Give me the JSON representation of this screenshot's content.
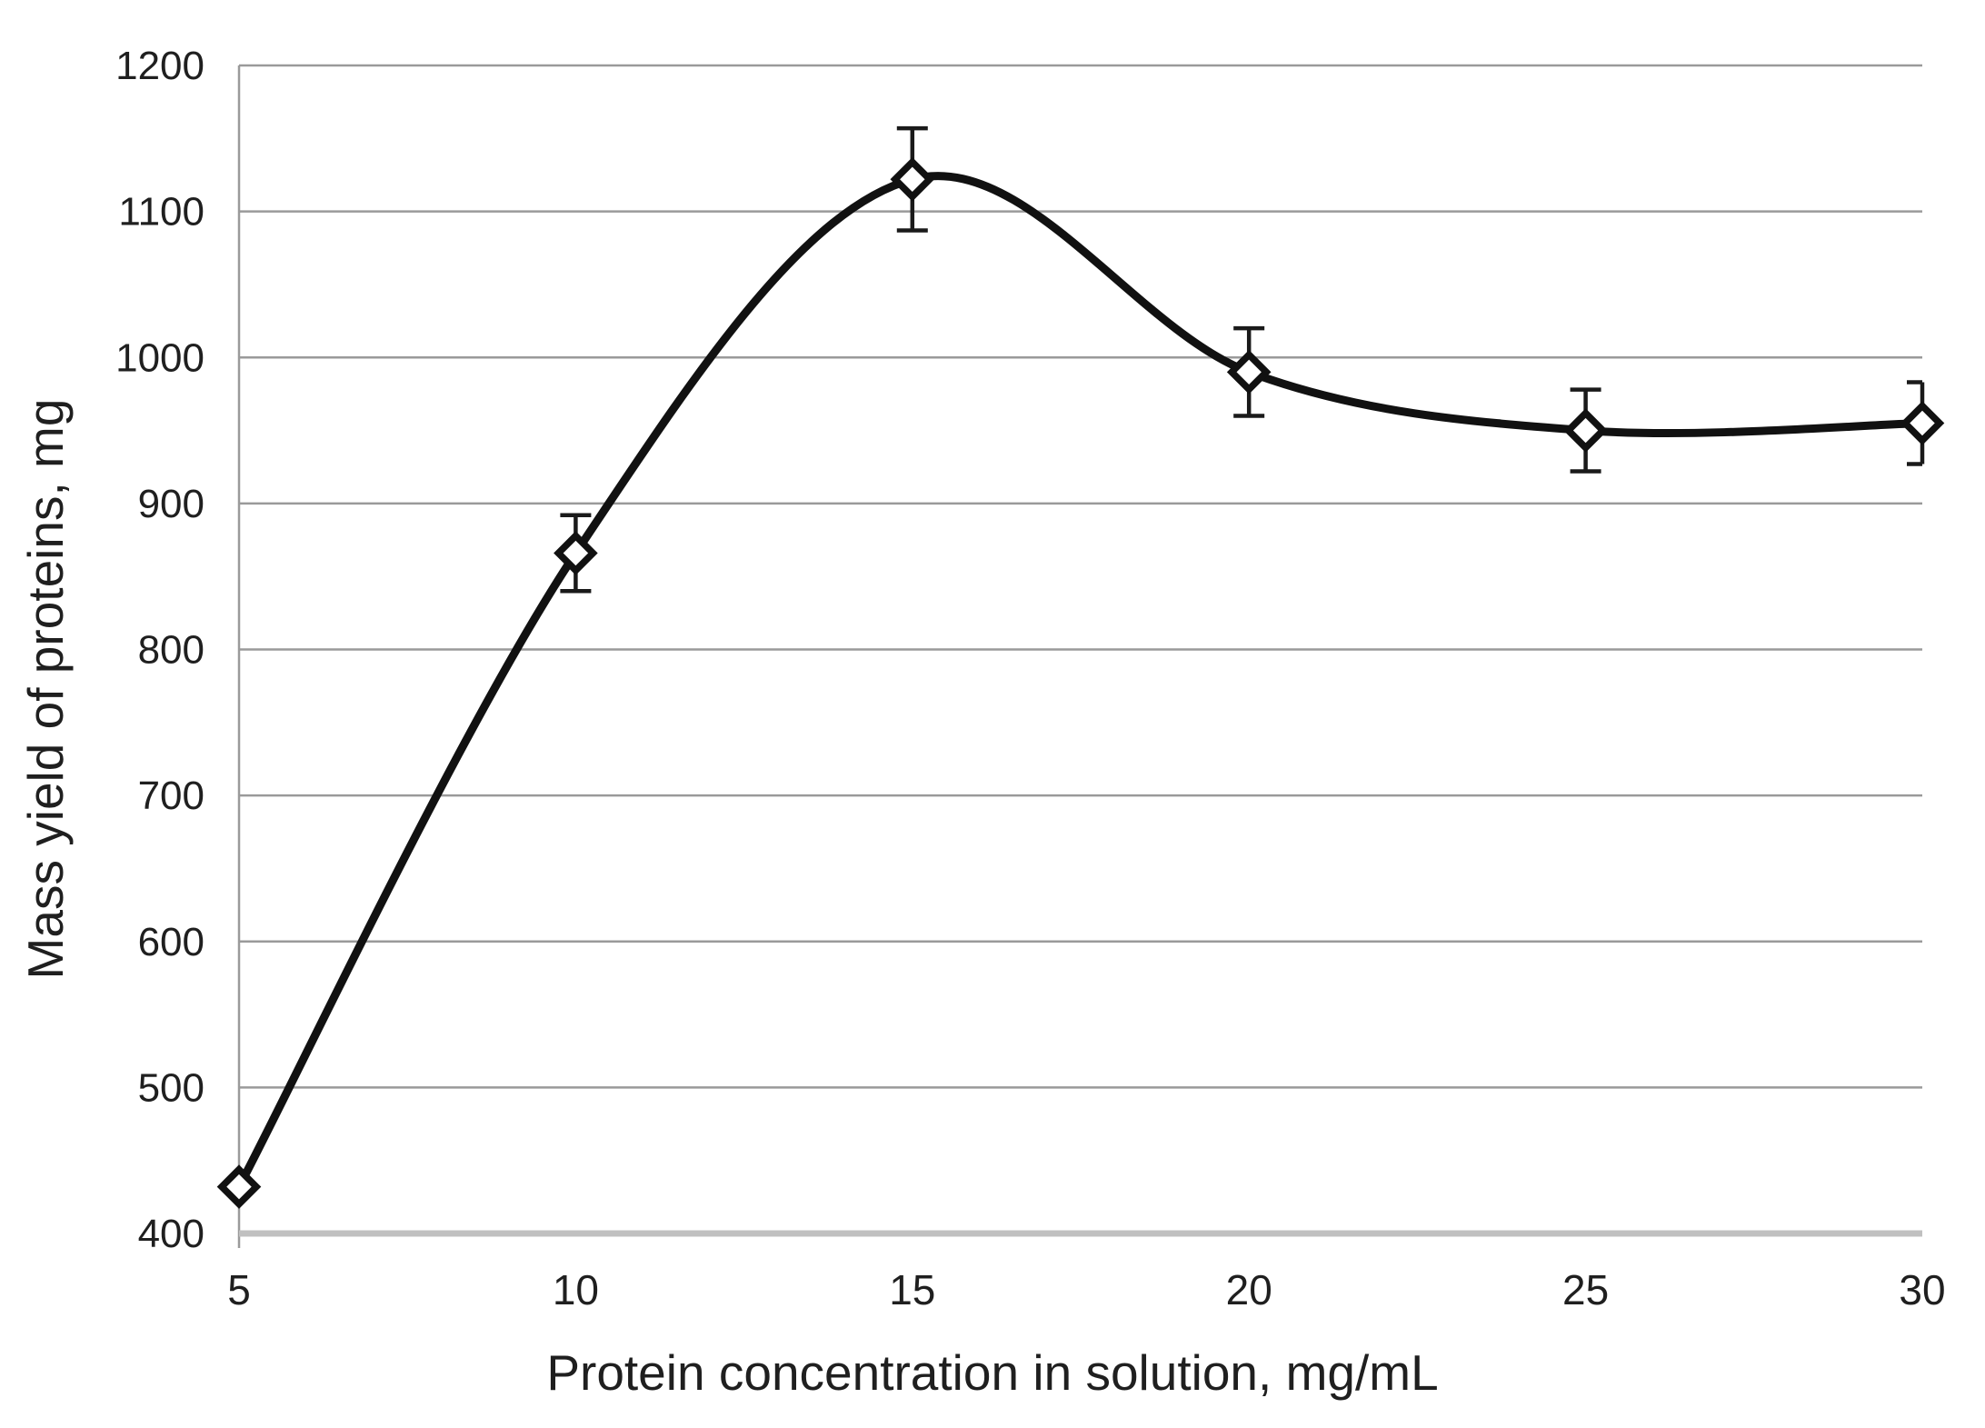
{
  "chart_data": {
    "type": "line",
    "title": "",
    "xlabel": "Protein concentration in solution, mg/mL",
    "ylabel": "Mass yield of proteins, mg",
    "x": [
      5,
      10,
      15,
      20,
      25,
      30
    ],
    "series": [
      {
        "name": "Mass yield of proteins",
        "values": [
          432,
          866,
          1122,
          990,
          950,
          955
        ],
        "error_plus": [
          0,
          26,
          35,
          30,
          28,
          28
        ],
        "error_minus": [
          0,
          26,
          35,
          30,
          28,
          28
        ]
      }
    ],
    "xlim": [
      5,
      30
    ],
    "ylim": [
      400,
      1200
    ],
    "xticks": [
      "5",
      "10",
      "15",
      "20",
      "25",
      "30"
    ],
    "yticks": [
      "400",
      "500",
      "600",
      "700",
      "800",
      "900",
      "1000",
      "1100",
      "1200"
    ],
    "ytick_values": [
      400,
      500,
      600,
      700,
      800,
      900,
      1000,
      1100,
      1200
    ],
    "grid": "horizontal",
    "legend_position": "none",
    "smooth_line": true,
    "marker": "open-diamond",
    "colors": {
      "line": "#111111",
      "marker_fill": "#ffffff",
      "marker_stroke": "#111111",
      "error_bar": "#1a1a1a",
      "gridline": "#9a9a9a",
      "axis_line": "#9a9a9a",
      "baseline": "#c0c0c0",
      "text": "#1f1f1f"
    }
  }
}
